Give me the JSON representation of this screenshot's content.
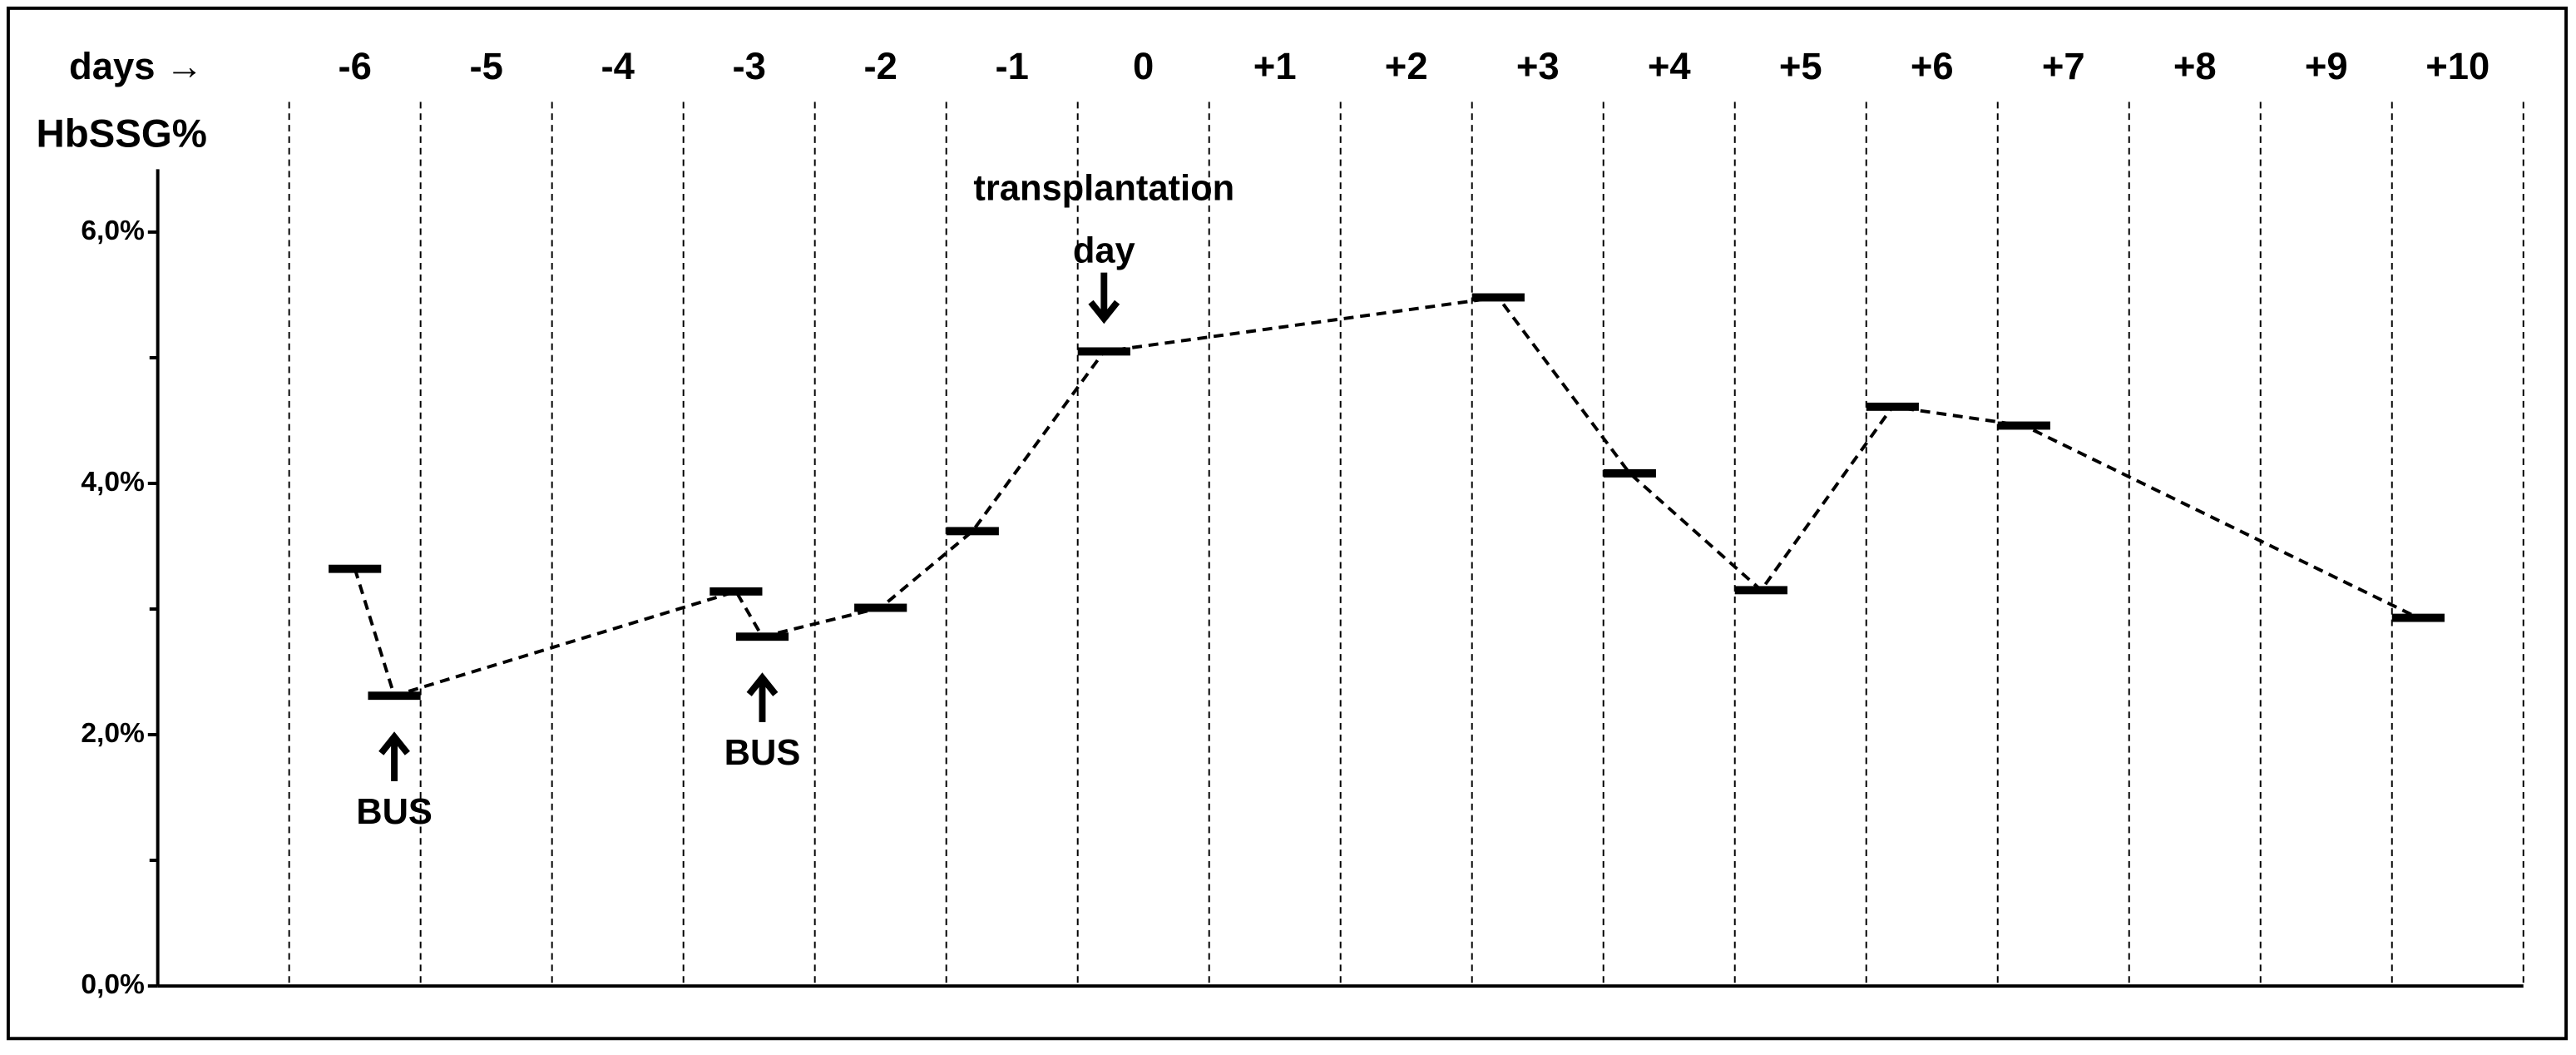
{
  "chart_data": {
    "type": "line",
    "x_label": "days →",
    "y_label": "HbSSG%",
    "x": [
      -6.0,
      -5.7,
      -3.1,
      -2.9,
      -2.0,
      -1.3,
      -0.3,
      2.7,
      3.7,
      4.7,
      5.7,
      6.7,
      9.7
    ],
    "values": [
      3.32,
      2.31,
      3.14,
      2.78,
      3.01,
      3.62,
      5.05,
      5.48,
      4.08,
      3.15,
      4.61,
      4.46,
      2.93
    ],
    "color": "#000000",
    "xlim": [
      -7.5,
      10.5
    ],
    "xticks": [
      -6,
      -5,
      -4,
      -3,
      -2,
      -1,
      0,
      {
        "value": 1,
        "label": "+1"
      },
      {
        "value": 2,
        "label": "+2"
      },
      {
        "value": 3,
        "label": "+3"
      },
      {
        "value": 4,
        "label": "+4"
      },
      {
        "value": 5,
        "label": "+5"
      },
      {
        "value": 6,
        "label": "+6"
      },
      {
        "value": 7,
        "label": "+7"
      },
      {
        "value": 8,
        "label": "+8"
      },
      {
        "value": 9,
        "label": "+9"
      },
      {
        "value": 10,
        "label": "+10"
      }
    ],
    "ylim": [
      0,
      6.5
    ],
    "yticks": [
      {
        "value": 0,
        "label": "0,0%"
      },
      {
        "value": 2,
        "label": "2,0%"
      },
      {
        "value": 4,
        "label": "4,0%"
      },
      {
        "value": 6,
        "label": "6,0%"
      }
    ],
    "annotations": [
      [
        "transplantation",
        "day"
      ],
      [
        "BUS"
      ],
      [
        "BUS"
      ]
    ]
  }
}
